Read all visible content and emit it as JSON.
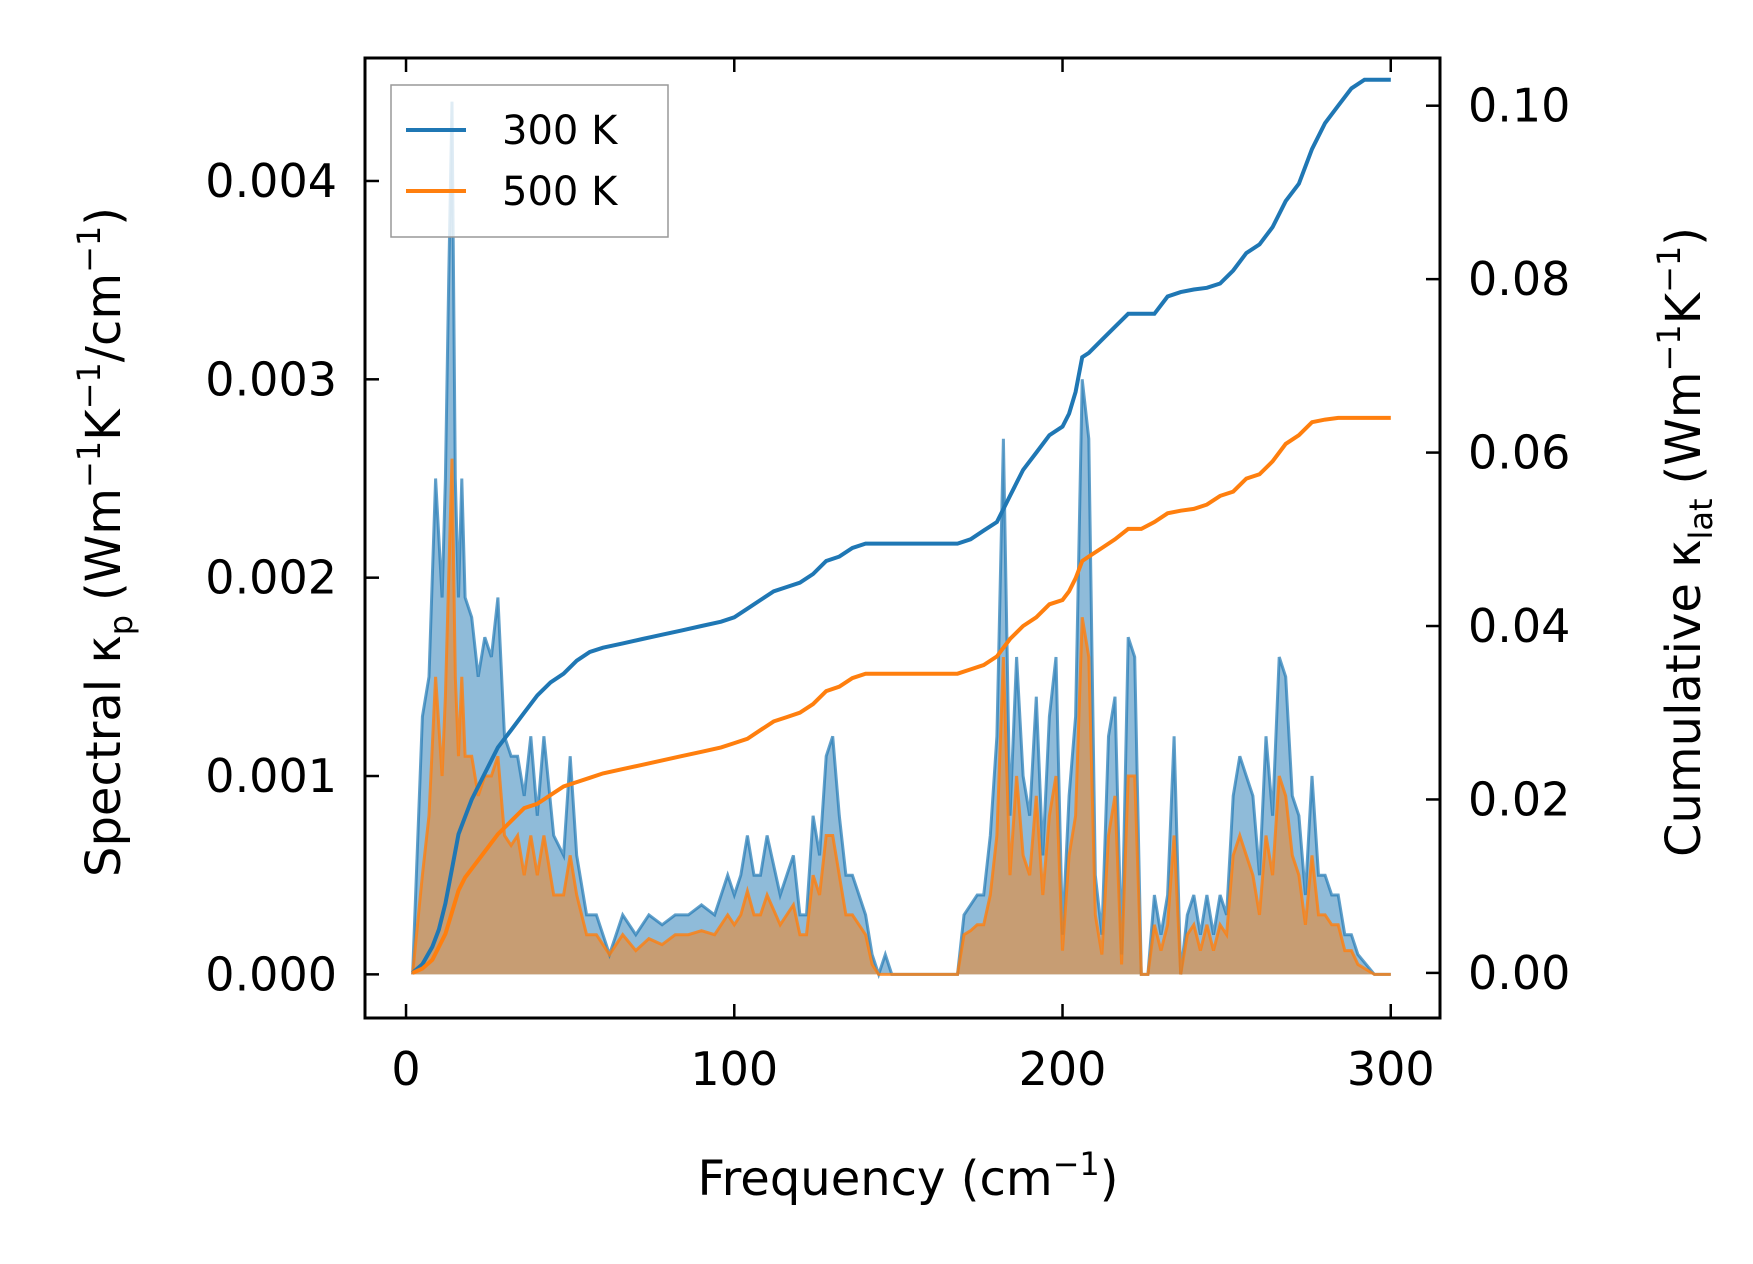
{
  "chart_data": {
    "type": "line",
    "xlabel": "Frequency (cm",
    "xlabel_sup": "−1",
    "xlabel_end": ")",
    "ylabel": "Spectral κ",
    "ylabel_sub": "p",
    "ylabel_units": "(Wm",
    "ylabel_sup1": "−1",
    "ylabel_k": "K",
    "ylabel_sup2": "−1",
    "ylabel_cm": "/cm",
    "ylabel_sup3": "−1",
    "ylabel_end": ")",
    "y2label": "Cumulative κ",
    "y2label_sub": "lat",
    "y2label_units": "(Wm",
    "y2label_sup1": "−1",
    "y2label_k": "K",
    "y2label_sup2": "−1",
    "y2label_end": ")",
    "xlim": [
      -12.5,
      315
    ],
    "ylim": [
      -0.00022,
      0.00462
    ],
    "y2lim": [
      -0.0052,
      0.1055
    ],
    "xticks": [
      "0",
      "100",
      "200",
      "300"
    ],
    "yticks": [
      "0.000",
      "0.001",
      "0.002",
      "0.003",
      "0.004"
    ],
    "y2ticks": [
      "0.00",
      "0.02",
      "0.04",
      "0.06",
      "0.08",
      "0.10"
    ],
    "legend": {
      "position": "top-left",
      "entries": [
        "300 K",
        "500 K"
      ]
    },
    "colors": {
      "300 K": "#1f77b4",
      "500 K": "#ff7f0e"
    },
    "spectral": {
      "x": [
        2,
        5,
        7,
        9,
        11,
        12,
        13,
        14,
        15,
        16,
        17,
        18,
        20,
        22,
        24,
        26,
        28,
        30,
        32,
        34,
        36,
        38,
        40,
        42,
        45,
        48,
        50,
        52,
        55,
        58,
        62,
        66,
        70,
        74,
        78,
        82,
        86,
        90,
        94,
        98,
        100,
        102,
        104,
        106,
        108,
        110,
        114,
        118,
        120,
        122,
        124,
        126,
        128,
        130,
        132,
        134,
        136,
        138,
        140,
        142,
        144,
        146,
        148,
        168,
        170,
        172,
        174,
        176,
        178,
        180,
        182,
        184,
        186,
        188,
        190,
        192,
        194,
        196,
        198,
        200,
        202,
        204,
        206,
        208,
        210,
        212,
        214,
        216,
        218,
        220,
        222,
        224,
        226,
        228,
        230,
        232,
        234,
        236,
        238,
        240,
        242,
        244,
        246,
        248,
        250,
        252,
        254,
        256,
        258,
        260,
        262,
        264,
        266,
        268,
        270,
        272,
        274,
        276,
        278,
        280,
        282,
        284,
        286,
        288,
        290,
        295,
        300
      ],
      "s300": [
        0,
        0.0013,
        0.0015,
        0.0025,
        0.0019,
        0.0025,
        0.0035,
        0.0044,
        0.0025,
        0.0019,
        0.0025,
        0.0019,
        0.0018,
        0.0015,
        0.0017,
        0.0016,
        0.0019,
        0.0012,
        0.0011,
        0.0011,
        0.0009,
        0.0012,
        0.0008,
        0.0012,
        0.0007,
        0.0006,
        0.0011,
        0.0006,
        0.0003,
        0.0003,
        0.0001,
        0.0003,
        0.0002,
        0.0003,
        0.00025,
        0.0003,
        0.0003,
        0.00035,
        0.0003,
        0.0005,
        0.0004,
        0.0005,
        0.0007,
        0.0005,
        0.0005,
        0.0007,
        0.0004,
        0.0006,
        0.0003,
        0.0003,
        0.0008,
        0.0006,
        0.0011,
        0.0012,
        0.0008,
        0.0005,
        0.0005,
        0.0004,
        0.0003,
        0.0001,
        0,
        0.0001,
        0,
        0,
        0.0003,
        0.00035,
        0.0004,
        0.0004,
        0.0007,
        0.0012,
        0.0027,
        0.0008,
        0.0016,
        0.001,
        0.0008,
        0.0014,
        0.0006,
        0.0013,
        0.0016,
        0.0002,
        0.0009,
        0.0013,
        0.003,
        0.0027,
        0.0005,
        0.0002,
        0.0012,
        0.0014,
        0.0001,
        0.0017,
        0.0016,
        0,
        0,
        0.0004,
        0.0002,
        0.0004,
        0.0012,
        0,
        0.0003,
        0.0004,
        0.0002,
        0.0004,
        0.0002,
        0.0004,
        0.0003,
        0.0009,
        0.0011,
        0.001,
        0.0009,
        0.0005,
        0.0012,
        0.0008,
        0.0016,
        0.0015,
        0.0009,
        0.0008,
        0.0004,
        0.001,
        0.0005,
        0.0005,
        0.0004,
        0.0004,
        0.0002,
        0.0002,
        0.0001,
        0,
        0
      ],
      "s500": [
        0,
        0.0005,
        0.0008,
        0.0015,
        0.001,
        0.0014,
        0.002,
        0.0026,
        0.0015,
        0.0011,
        0.0015,
        0.0011,
        0.0011,
        0.0009,
        0.001,
        0.001,
        0.0011,
        0.0007,
        0.00065,
        0.0007,
        0.0005,
        0.0007,
        0.0005,
        0.0007,
        0.0004,
        0.0004,
        0.0006,
        0.0004,
        0.0002,
        0.0002,
        0.0001,
        0.0002,
        0.00012,
        0.00018,
        0.00015,
        0.0002,
        0.0002,
        0.00022,
        0.0002,
        0.0003,
        0.00025,
        0.0003,
        0.00042,
        0.0003,
        0.0003,
        0.0004,
        0.00025,
        0.00035,
        0.0002,
        0.0002,
        0.0005,
        0.0004,
        0.0007,
        0.0007,
        0.0005,
        0.0003,
        0.0003,
        0.00025,
        0.0002,
        5e-05,
        0,
        0,
        0,
        0,
        0.0002,
        0.00022,
        0.00025,
        0.00025,
        0.0004,
        0.0007,
        0.0016,
        0.0005,
        0.001,
        0.0006,
        0.0005,
        0.0009,
        0.0004,
        0.0008,
        0.001,
        0.00012,
        0.0006,
        0.0008,
        0.0018,
        0.0016,
        0.0003,
        0.0001,
        0.0007,
        0.0009,
        5e-05,
        0.001,
        0.001,
        0,
        0,
        0.00025,
        0.00012,
        0.00025,
        0.0007,
        0,
        0.0002,
        0.00025,
        0.00012,
        0.00025,
        0.00012,
        0.00025,
        0.0002,
        0.0006,
        0.0007,
        0.0006,
        0.0005,
        0.0003,
        0.0007,
        0.0005,
        0.001,
        0.0009,
        0.0006,
        0.0005,
        0.00025,
        0.0006,
        0.0003,
        0.0003,
        0.00025,
        0.00025,
        0.00012,
        0.00012,
        5e-05,
        0,
        0
      ]
    },
    "cumulative": {
      "x": [
        2,
        5,
        8,
        10,
        12,
        14,
        16,
        18,
        20,
        24,
        28,
        32,
        36,
        40,
        44,
        48,
        52,
        56,
        60,
        66,
        72,
        78,
        84,
        90,
        96,
        100,
        104,
        108,
        112,
        116,
        120,
        124,
        128,
        132,
        136,
        140,
        144,
        150,
        160,
        168,
        172,
        176,
        180,
        184,
        188,
        192,
        196,
        200,
        202,
        204,
        206,
        208,
        212,
        216,
        220,
        224,
        228,
        232,
        236,
        240,
        244,
        248,
        252,
        256,
        260,
        264,
        268,
        272,
        276,
        280,
        284,
        288,
        292,
        300
      ],
      "c300": [
        0,
        0.001,
        0.003,
        0.005,
        0.008,
        0.012,
        0.016,
        0.018,
        0.02,
        0.023,
        0.026,
        0.028,
        0.03,
        0.032,
        0.0335,
        0.0345,
        0.036,
        0.037,
        0.0375,
        0.038,
        0.0385,
        0.039,
        0.0395,
        0.04,
        0.0405,
        0.041,
        0.042,
        0.043,
        0.044,
        0.0445,
        0.045,
        0.046,
        0.0475,
        0.048,
        0.049,
        0.0495,
        0.0495,
        0.0495,
        0.0495,
        0.0495,
        0.05,
        0.051,
        0.052,
        0.055,
        0.058,
        0.06,
        0.062,
        0.063,
        0.0645,
        0.067,
        0.071,
        0.0715,
        0.073,
        0.0745,
        0.076,
        0.076,
        0.076,
        0.078,
        0.0785,
        0.0788,
        0.079,
        0.0795,
        0.081,
        0.083,
        0.084,
        0.086,
        0.089,
        0.091,
        0.095,
        0.098,
        0.1,
        0.102,
        0.103,
        0.103
      ],
      "c500": [
        0,
        0.0005,
        0.0015,
        0.003,
        0.0045,
        0.007,
        0.0095,
        0.011,
        0.012,
        0.014,
        0.016,
        0.0175,
        0.019,
        0.0195,
        0.0205,
        0.0215,
        0.022,
        0.0225,
        0.023,
        0.0235,
        0.024,
        0.0245,
        0.025,
        0.0255,
        0.026,
        0.0265,
        0.027,
        0.028,
        0.029,
        0.0295,
        0.03,
        0.031,
        0.0325,
        0.033,
        0.034,
        0.0345,
        0.0345,
        0.0345,
        0.0345,
        0.0345,
        0.035,
        0.0355,
        0.0365,
        0.0385,
        0.04,
        0.041,
        0.0425,
        0.043,
        0.044,
        0.0455,
        0.0475,
        0.048,
        0.049,
        0.05,
        0.0512,
        0.0512,
        0.052,
        0.053,
        0.0533,
        0.0535,
        0.054,
        0.055,
        0.0555,
        0.057,
        0.0575,
        0.059,
        0.061,
        0.062,
        0.0635,
        0.0638,
        0.064,
        0.064,
        0.064,
        0.064
      ]
    }
  }
}
